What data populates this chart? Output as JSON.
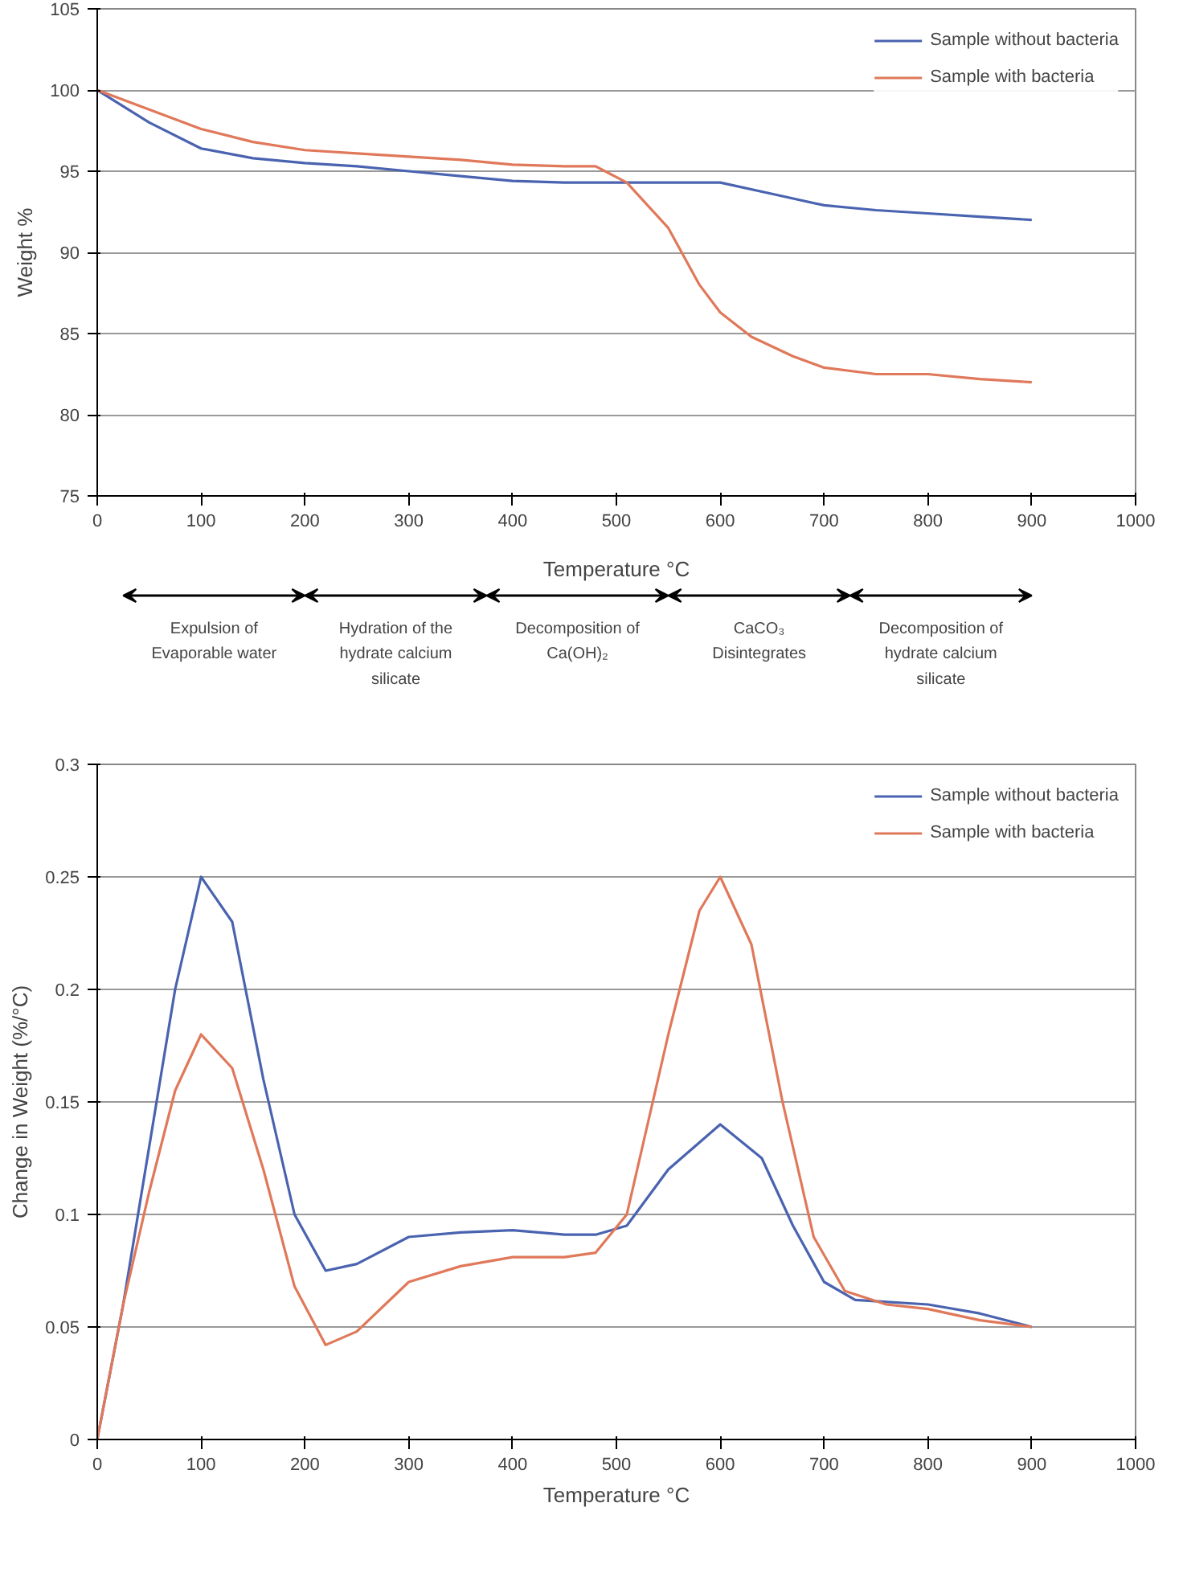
{
  "chart_data": [
    {
      "type": "line",
      "xlabel": "Temperature °C",
      "ylabel": "Weight %",
      "xlim": [
        0,
        1000
      ],
      "xticks": [
        0,
        100,
        200,
        300,
        400,
        500,
        600,
        700,
        800,
        900,
        1000
      ],
      "ylim": [
        75,
        105
      ],
      "yticks": [
        75,
        80,
        85,
        90,
        95,
        100,
        105
      ],
      "grid": "y",
      "legend": "top right",
      "marker": "none",
      "line_style": "solid",
      "series": [
        {
          "name": "Sample without bacteria",
          "color": "#4a63b0",
          "x": [
            0,
            50,
            100,
            150,
            200,
            250,
            300,
            350,
            400,
            450,
            500,
            550,
            600,
            650,
            700,
            750,
            800,
            850,
            900
          ],
          "values": [
            100,
            98,
            96.4,
            95.8,
            95.5,
            95.3,
            95,
            94.7,
            94.4,
            94.3,
            94.3,
            94.3,
            94.3,
            93.6,
            92.9,
            92.6,
            92.4,
            92.2,
            92.0
          ]
        },
        {
          "name": "Sample with bacteria",
          "color": "#e0785a",
          "x": [
            0,
            50,
            100,
            150,
            200,
            250,
            300,
            350,
            400,
            450,
            480,
            510,
            550,
            580,
            600,
            630,
            670,
            700,
            750,
            800,
            850,
            900
          ],
          "values": [
            100,
            98.8,
            97.6,
            96.8,
            96.3,
            96.1,
            95.9,
            95.7,
            95.4,
            95.3,
            95.3,
            94.3,
            91.5,
            88,
            86.3,
            84.8,
            83.6,
            82.9,
            82.5,
            82.5,
            82.2,
            82.0
          ]
        }
      ],
      "annotations": [
        "Expulsion of Evaporable water",
        "Hydration of the hydrate calcium silicate",
        "Decomposition of Ca(OH)₂",
        "CaCO₃ Disintegrates",
        "Decomposition of hydrate calcium silicate"
      ]
    },
    {
      "type": "line",
      "xlabel": "Temperature °C",
      "ylabel": "Change in Weight (%/°C)",
      "xlim": [
        0,
        1000
      ],
      "xticks": [
        0,
        100,
        200,
        300,
        400,
        500,
        600,
        700,
        800,
        900,
        1000
      ],
      "ylim": [
        0,
        0.3
      ],
      "yticks": [
        0,
        0.05,
        0.1,
        0.15,
        0.2,
        0.25,
        0.3
      ],
      "grid": "y",
      "legend": "top right",
      "marker": "none",
      "line_style": "solid",
      "series": [
        {
          "name": "Sample without bacteria",
          "color": "#4a63b0",
          "x": [
            0,
            25,
            50,
            75,
            100,
            130,
            160,
            190,
            220,
            250,
            300,
            350,
            400,
            450,
            480,
            510,
            550,
            600,
            640,
            670,
            700,
            730,
            800,
            850,
            900
          ],
          "values": [
            0,
            0.06,
            0.13,
            0.2,
            0.25,
            0.23,
            0.16,
            0.1,
            0.075,
            0.078,
            0.09,
            0.092,
            0.093,
            0.091,
            0.091,
            0.095,
            0.12,
            0.14,
            0.125,
            0.095,
            0.07,
            0.062,
            0.06,
            0.056,
            0.05
          ]
        },
        {
          "name": "Sample with bacteria",
          "color": "#e0785a",
          "x": [
            0,
            25,
            50,
            75,
            100,
            130,
            160,
            190,
            220,
            250,
            300,
            350,
            400,
            450,
            480,
            510,
            550,
            580,
            600,
            630,
            660,
            690,
            720,
            760,
            800,
            850,
            900
          ],
          "values": [
            0,
            0.06,
            0.11,
            0.155,
            0.18,
            0.165,
            0.12,
            0.068,
            0.042,
            0.048,
            0.07,
            0.077,
            0.081,
            0.081,
            0.083,
            0.1,
            0.18,
            0.235,
            0.25,
            0.22,
            0.15,
            0.09,
            0.066,
            0.06,
            0.058,
            0.053,
            0.05
          ]
        }
      ]
    }
  ]
}
